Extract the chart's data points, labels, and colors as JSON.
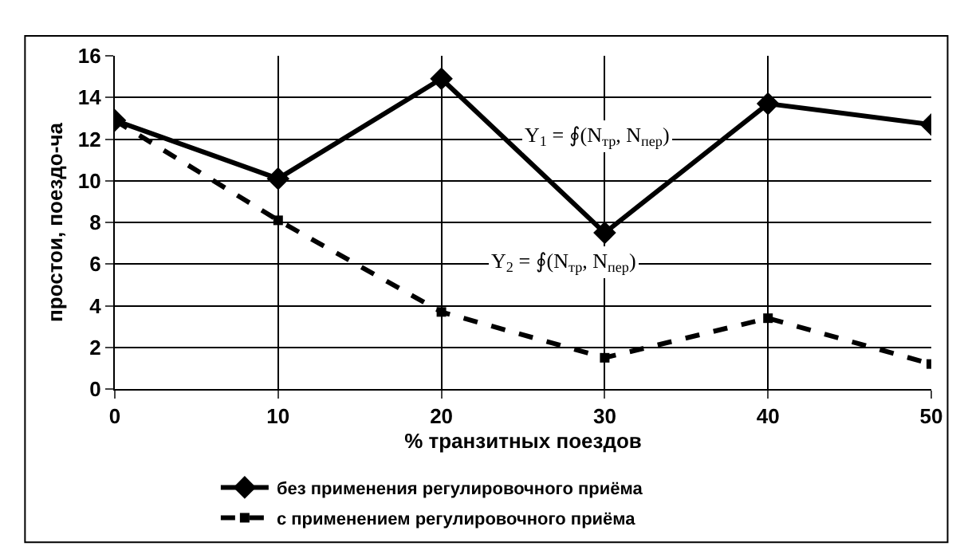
{
  "chart_data": {
    "type": "line",
    "xlabel": "% транзитных поездов",
    "ylabel": "простои, поездо-ча",
    "x": [
      0,
      10,
      20,
      30,
      40,
      50
    ],
    "series": [
      {
        "name": "без применения регулировочного приёма",
        "color": "#000000",
        "marker": "diamond",
        "line_style": "solid",
        "values": [
          12.9,
          10.1,
          14.9,
          7.5,
          13.7,
          12.7
        ]
      },
      {
        "name": "с применением регулировочного приёма",
        "color": "#000000",
        "marker": "square",
        "line_style": "dashed",
        "values": [
          12.9,
          8.1,
          3.7,
          1.5,
          3.4,
          1.2
        ]
      }
    ],
    "annotations": [
      "Y$_{1}$ = ∮(N$_{тр}$, N$_{пер}$)",
      "Y$_{2}$ = ∮(N$_{тр}$, N$_{пер}$)"
    ],
    "xlim": [
      0,
      50
    ],
    "xticks": [
      0,
      10,
      20,
      30,
      40,
      50
    ],
    "ylim": [
      0,
      16
    ],
    "yticks": [
      0,
      2,
      4,
      6,
      8,
      10,
      12,
      14,
      16
    ],
    "grid": true,
    "legend": "bottom"
  }
}
